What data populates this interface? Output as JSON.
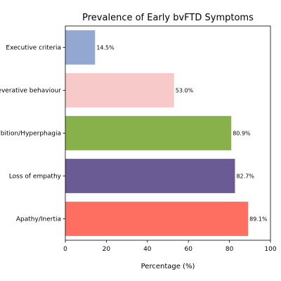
{
  "chart_data": {
    "type": "bar",
    "orientation": "horizontal",
    "title": "Prevalence of Early bvFTD Symptoms",
    "xlabel": "Percentage (%)",
    "ylabel": "",
    "xlim": [
      0,
      100
    ],
    "xticks": [
      "0",
      "20",
      "40",
      "60",
      "80",
      "100"
    ],
    "grid": false,
    "legend": "none",
    "categories": [
      "Apathy/Inertia",
      "Loss of empathy",
      "Disinhibition/Hyperphagia",
      "Perseverative behaviour",
      "Executive criteria"
    ],
    "values": [
      89.1,
      82.7,
      80.9,
      53.0,
      14.5
    ],
    "value_labels": [
      "89.1%",
      "82.7%",
      "80.9%",
      "53.0%",
      "14.5%"
    ],
    "colors": [
      "#ff6f61",
      "#6b5b95",
      "#88b04b",
      "#f7cac9",
      "#92a8d1"
    ]
  }
}
